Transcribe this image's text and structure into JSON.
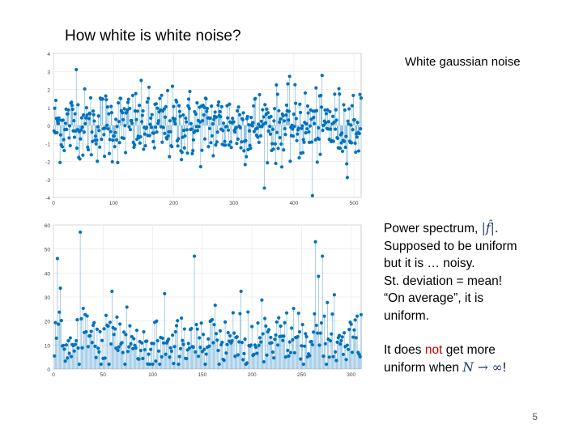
{
  "slide": {
    "title": "How white is white noise?",
    "subtitle": "White gaussian noise",
    "page_number": "5"
  },
  "notes": {
    "line1_text": "Power spectrum, ",
    "line1_math": "|f̂|.",
    "line2": "Supposed to be uniform",
    "line3": "but it is … noisy.",
    "line4": "St. deviation = mean!",
    "line5": "“On average”, it is",
    "line6": "uniform.",
    "line7_a": "It does ",
    "line7_red": "not",
    "line7_b": " get more",
    "line8_a": "uniform when ",
    "line8_math": "N → ∞",
    "line8_b": "!"
  },
  "chart_data": [
    {
      "type": "stem",
      "color": "#0072bd",
      "grid": true,
      "xlim": [
        0,
        512
      ],
      "ylim": [
        -4,
        4
      ],
      "x_ticks": [
        "0",
        "100",
        "200",
        "300",
        "400",
        "500"
      ],
      "y_ticks": [
        "4",
        "3",
        "2",
        "1",
        "0",
        "-1",
        "-2",
        "-3",
        "-4"
      ],
      "n_points": 512,
      "distribution": "gaussian, mean 0, std 1"
    },
    {
      "type": "stem",
      "color": "#0072bd",
      "grid": true,
      "xlim": [
        0,
        310
      ],
      "ylim": [
        0,
        60
      ],
      "x_ticks": [
        "0",
        "50",
        "100",
        "150",
        "200",
        "250",
        "300"
      ],
      "y_ticks": [
        "60",
        "50",
        "40",
        "30",
        "20",
        "10",
        "0"
      ],
      "n_points": 310,
      "peaks": [
        {
          "x": 27,
          "y": 57
        },
        {
          "x": 264,
          "y": 53
        },
        {
          "x": 142,
          "y": 47
        },
        {
          "x": 271,
          "y": 47
        },
        {
          "x": 4,
          "y": 46
        }
      ]
    }
  ]
}
